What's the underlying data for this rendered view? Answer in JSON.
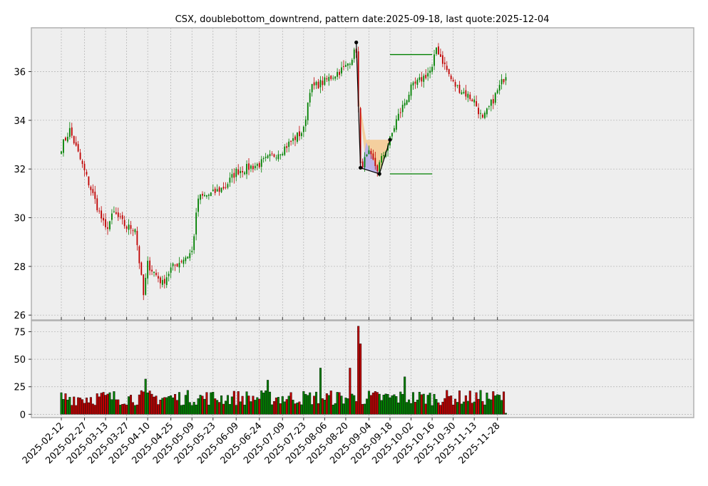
{
  "chart_data": {
    "type": "candlestick",
    "title": "CSX, doublebottom_downtrend, pattern date:2025-09-18, last quote:2025-12-04",
    "x_tick_labels": [
      "2025-02-12",
      "2025-02-27",
      "2025-03-13",
      "2025-03-27",
      "2025-04-10",
      "2025-04-25",
      "2025-05-09",
      "2025-05-23",
      "2025-06-09",
      "2025-06-24",
      "2025-07-09",
      "2025-07-23",
      "2025-08-06",
      "2025-08-20",
      "2025-09-04",
      "2025-09-18",
      "2025-10-02",
      "2025-10-16",
      "2025-10-30",
      "2025-11-13",
      "2025-11-28"
    ],
    "price_axis": {
      "ylim": [
        25.8,
        37.8
      ],
      "ticks": [
        26,
        28,
        30,
        32,
        34,
        36
      ]
    },
    "volume_axis": {
      "ylim": [
        -3,
        85
      ],
      "ticks": [
        0,
        25,
        50,
        75
      ]
    },
    "grid": true,
    "colors": {
      "up": "#008000",
      "down": "#c00000",
      "background": "#eeeeee",
      "grid": "#b0b0b0",
      "pattern_line": "#000000",
      "level_line": "#008000",
      "fill_orange": "#f5c78a",
      "fill_blue": "#aaaaff"
    },
    "key_price_anchors": [
      {
        "date": "2025-02-12",
        "price": 32.9
      },
      {
        "date": "2025-02-18",
        "price": 33.6
      },
      {
        "date": "2025-02-27",
        "price": 31.9
      },
      {
        "date": "2025-03-13",
        "price": 29.5
      },
      {
        "date": "2025-03-19",
        "price": 30.2
      },
      {
        "date": "2025-03-27",
        "price": 29.6
      },
      {
        "date": "2025-04-02",
        "price": 29.6
      },
      {
        "date": "2025-04-08",
        "price": 26.8
      },
      {
        "date": "2025-04-10",
        "price": 28.1
      },
      {
        "date": "2025-04-21",
        "price": 27.3
      },
      {
        "date": "2025-04-25",
        "price": 27.9
      },
      {
        "date": "2025-05-09",
        "price": 28.6
      },
      {
        "date": "2025-05-14",
        "price": 30.8
      },
      {
        "date": "2025-05-23",
        "price": 31.0
      },
      {
        "date": "2025-06-02",
        "price": 31.3
      },
      {
        "date": "2025-06-09",
        "price": 31.9
      },
      {
        "date": "2025-06-24",
        "price": 32.2
      },
      {
        "date": "2025-07-09",
        "price": 32.8
      },
      {
        "date": "2025-07-23",
        "price": 33.6
      },
      {
        "date": "2025-07-28",
        "price": 35.3
      },
      {
        "date": "2025-08-06",
        "price": 35.6
      },
      {
        "date": "2025-08-20",
        "price": 36.2
      },
      {
        "date": "2025-08-27",
        "price": 36.9
      },
      {
        "date": "2025-08-29",
        "price": 32.1
      },
      {
        "date": "2025-09-04",
        "price": 32.6
      },
      {
        "date": "2025-09-10",
        "price": 32.0
      },
      {
        "date": "2025-09-18",
        "price": 33.2
      },
      {
        "date": "2025-09-23",
        "price": 34.0
      },
      {
        "date": "2025-10-02",
        "price": 35.3
      },
      {
        "date": "2025-10-16",
        "price": 36.1
      },
      {
        "date": "2025-10-20",
        "price": 37.0
      },
      {
        "date": "2025-10-30",
        "price": 35.5
      },
      {
        "date": "2025-11-13",
        "price": 34.8
      },
      {
        "date": "2025-11-19",
        "price": 34.0
      },
      {
        "date": "2025-11-28",
        "price": 35.2
      },
      {
        "date": "2025-12-04",
        "price": 35.9
      }
    ],
    "pattern_points": [
      {
        "date": "2025-08-27",
        "price": 37.2
      },
      {
        "date": "2025-08-29",
        "price": 32.05
      },
      {
        "date": "2025-09-11",
        "price": 31.8
      },
      {
        "date": "2025-09-18",
        "price": 33.2
      }
    ],
    "resistance_level": {
      "price": 36.7,
      "from": "2025-09-18",
      "to": "2025-10-16"
    },
    "support_level": {
      "price": 31.8,
      "from": "2025-09-18",
      "to": "2025-10-16"
    },
    "volume_spikes": [
      {
        "date": "2025-08-28",
        "value": 80
      },
      {
        "date": "2025-08-29",
        "value": 64
      },
      {
        "date": "2025-08-22",
        "value": 42
      },
      {
        "date": "2025-08-04",
        "value": 42
      },
      {
        "date": "2025-09-29",
        "value": 34
      },
      {
        "date": "2025-04-09",
        "value": 32
      },
      {
        "date": "2025-06-30",
        "value": 31
      }
    ]
  }
}
